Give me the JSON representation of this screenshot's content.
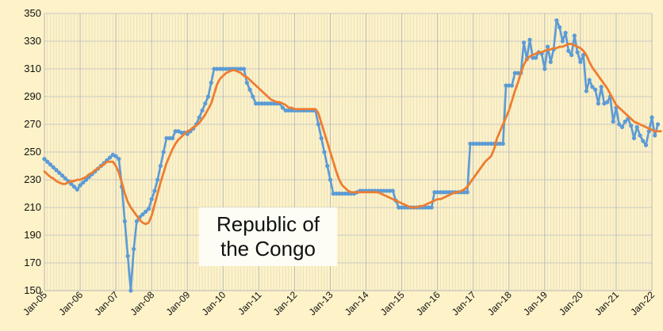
{
  "chart_data": {
    "type": "line",
    "title_lines": [
      "Republic of",
      "the Congo"
    ],
    "xlabel": "",
    "ylabel": "",
    "ylim": [
      150,
      350
    ],
    "yticks": [
      150,
      170,
      190,
      210,
      230,
      250,
      270,
      290,
      310,
      330,
      350
    ],
    "xticks": [
      "Jan-05",
      "Jan-06",
      "Jan-07",
      "Jan-08",
      "Jan-09",
      "Jan-10",
      "Jan-11",
      "Jan-12",
      "Jan-13",
      "Jan-14",
      "Jan-15",
      "Jan-16",
      "Jan-17",
      "Jan-18",
      "Jan-19",
      "Jan-20",
      "Jan-21",
      "Jan-22"
    ],
    "x_start": "2005-01",
    "grid": true,
    "legend": "none",
    "colors": {
      "monthly": "#5b9bd5",
      "trend": "#ed7d31",
      "grid": "#c8c8c8",
      "background": "#fdf2c8"
    },
    "series": [
      {
        "values": [
          245,
          243,
          241,
          239,
          237,
          235,
          233,
          231,
          229,
          227,
          225,
          223,
          226,
          228,
          230,
          232,
          234,
          236,
          238,
          240,
          242,
          244,
          246,
          248,
          247,
          245,
          225,
          200,
          175,
          150,
          180,
          200,
          203,
          205,
          207,
          209,
          216,
          222,
          230,
          240,
          250,
          260,
          260,
          260,
          265,
          265,
          264,
          264,
          263,
          265,
          267,
          270,
          275,
          280,
          285,
          290,
          300,
          310,
          310,
          310,
          310,
          310,
          310,
          310,
          310,
          310,
          310,
          310,
          300,
          295,
          290,
          285,
          285,
          285,
          285,
          285,
          285,
          285,
          285,
          285,
          282,
          280,
          280,
          280,
          280,
          280,
          280,
          280,
          280,
          280,
          280,
          280,
          270,
          260,
          250,
          240,
          230,
          220,
          220,
          220,
          220,
          220,
          220,
          220,
          220,
          221,
          222,
          222,
          222,
          222,
          222,
          222,
          222,
          222,
          222,
          222,
          222,
          222,
          215,
          210,
          210,
          210,
          210,
          210,
          210,
          210,
          210,
          210,
          210,
          210,
          210,
          221,
          221,
          221,
          221,
          221,
          221,
          221,
          221,
          221,
          221,
          221,
          221,
          256,
          256,
          256,
          256,
          256,
          256,
          256,
          256,
          256,
          256,
          256,
          256,
          298,
          298,
          298,
          307,
          307,
          307,
          329,
          317,
          331,
          318,
          318,
          322,
          321,
          310,
          326,
          315,
          324,
          345,
          340,
          330,
          336,
          323,
          320,
          334,
          322,
          315,
          320,
          294,
          302,
          297,
          295,
          285,
          297,
          285,
          286,
          290,
          272,
          282,
          270,
          268,
          272,
          274,
          269,
          260,
          268,
          262,
          258,
          255,
          265,
          275,
          262,
          270
        ]
      },
      {
        "values": [
          236,
          234,
          232,
          231,
          229,
          228,
          227,
          227,
          228,
          229,
          229,
          230,
          230,
          231,
          232,
          234,
          235,
          237,
          238,
          240,
          241,
          243,
          243,
          243,
          240,
          235,
          228,
          220,
          214,
          210,
          207,
          204,
          201,
          199,
          198,
          199,
          204,
          212,
          220,
          228,
          235,
          242,
          247,
          252,
          256,
          259,
          261,
          263,
          265,
          266,
          268,
          269,
          271,
          274,
          277,
          281,
          285,
          292,
          299,
          303,
          305,
          307,
          308,
          309,
          309,
          308,
          307,
          305,
          304,
          302,
          300,
          298,
          296,
          294,
          292,
          290,
          288,
          287,
          286,
          286,
          285,
          284,
          282,
          282,
          281,
          281,
          281,
          281,
          281,
          281,
          281,
          281,
          278,
          271,
          264,
          257,
          250,
          243,
          236,
          230,
          226,
          224,
          222,
          221,
          221,
          221,
          221,
          221,
          221,
          221,
          221,
          221,
          221,
          220,
          219,
          218,
          217,
          216,
          215,
          214,
          213,
          212,
          211,
          210,
          210,
          210,
          211,
          211,
          212,
          213,
          214,
          215,
          216,
          216,
          217,
          218,
          219,
          220,
          221,
          221,
          222,
          223,
          225,
          228,
          231,
          234,
          237,
          240,
          243,
          245,
          247,
          252,
          260,
          265,
          270,
          275,
          280,
          287,
          294,
          300,
          307,
          313,
          317,
          319,
          320,
          321,
          322,
          322,
          323,
          324,
          324,
          325,
          325,
          326,
          326,
          327,
          328,
          328,
          327,
          326,
          325,
          323,
          320,
          315,
          311,
          308,
          305,
          302,
          299,
          296,
          292,
          288,
          284,
          282,
          280,
          278,
          276,
          274,
          272,
          271,
          270,
          269,
          268,
          267,
          266,
          265,
          265,
          265
        ]
      }
    ]
  }
}
